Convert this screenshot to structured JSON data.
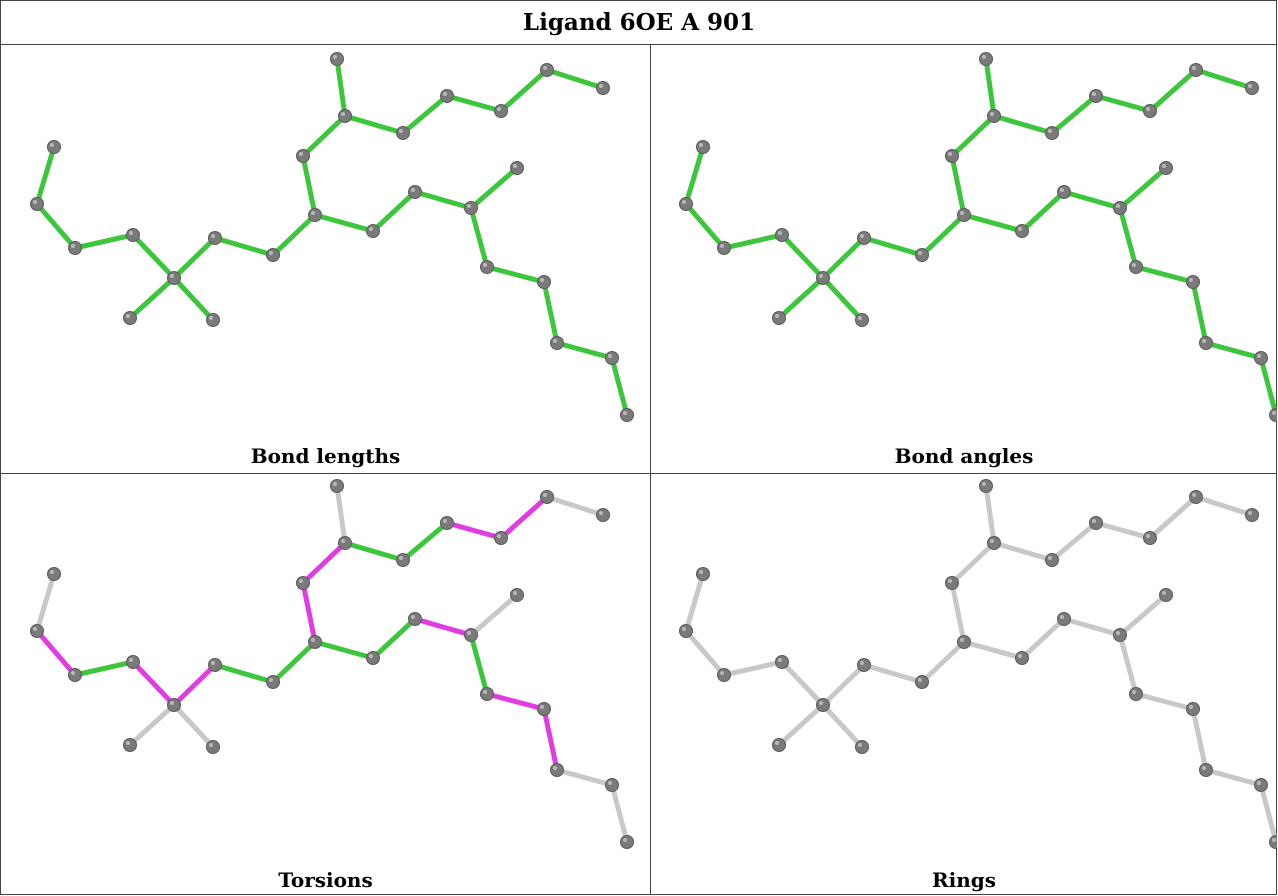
{
  "title": "Ligand 6OE A 901",
  "panels": [
    {
      "id": "bond-lengths",
      "caption": "Bond lengths",
      "default_color": "green"
    },
    {
      "id": "bond-angles",
      "caption": "Bond angles",
      "default_color": "green"
    },
    {
      "id": "torsions",
      "caption": "Torsions",
      "default_color": "gray"
    },
    {
      "id": "rings",
      "caption": "Rings",
      "default_color": "gray"
    }
  ],
  "torsion_bond_colors": {
    "0-1": "gray",
    "1-2": "magenta",
    "2-3": "green",
    "3-4": "magenta",
    "4-5": "gray",
    "4-6": "gray",
    "4-7": "magenta",
    "7-8": "green",
    "8-9": "green",
    "9-10": "magenta",
    "10-11": "magenta",
    "11-12": "gray",
    "11-13": "green",
    "13-14": "green",
    "14-15": "magenta",
    "15-16": "magenta",
    "16-17": "gray",
    "9-18": "green",
    "18-19": "green",
    "19-20": "magenta",
    "20-21": "gray",
    "20-22": "green",
    "22-23": "magenta",
    "23-24": "magenta",
    "24-25": "gray"
  },
  "colors": {
    "green": "#3cc63c",
    "magenta": "#e23be2",
    "gray": "#c8c8c8",
    "atom": "#7a7a7a"
  }
}
